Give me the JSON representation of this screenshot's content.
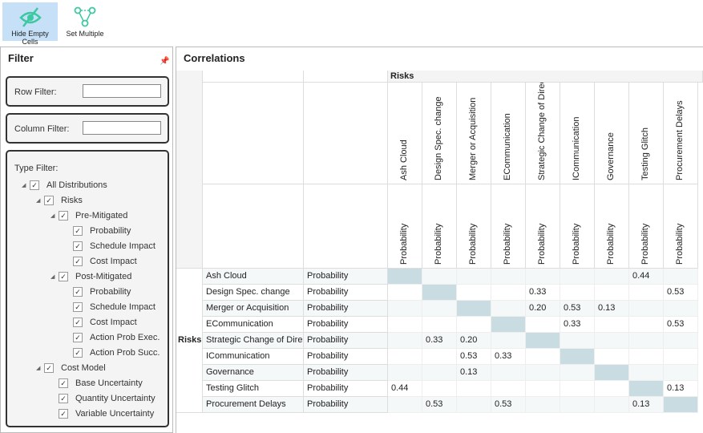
{
  "toolbar": {
    "hide_empty": "Hide Empty Cells",
    "set_multiple": "Set Multiple",
    "accent": "#3cc8a0"
  },
  "filter": {
    "title": "Filter",
    "row_filter": "Row Filter:",
    "row_value": "",
    "column_filter": "Column Filter:",
    "column_value": "",
    "type_filter": "Type Filter:",
    "tree": [
      {
        "label": "All Distributions",
        "level": 0,
        "expandable": true,
        "checked": true
      },
      {
        "label": "Risks",
        "level": 1,
        "expandable": true,
        "checked": true
      },
      {
        "label": "Pre-Mitigated",
        "level": 2,
        "expandable": true,
        "checked": true
      },
      {
        "label": "Probability",
        "level": 3,
        "expandable": false,
        "checked": true
      },
      {
        "label": "Schedule Impact",
        "level": 3,
        "expandable": false,
        "checked": true
      },
      {
        "label": "Cost Impact",
        "level": 3,
        "expandable": false,
        "checked": true
      },
      {
        "label": "Post-Mitigated",
        "level": 2,
        "expandable": true,
        "checked": true
      },
      {
        "label": "Probability",
        "level": 3,
        "expandable": false,
        "checked": true
      },
      {
        "label": "Schedule Impact",
        "level": 3,
        "expandable": false,
        "checked": true
      },
      {
        "label": "Cost Impact",
        "level": 3,
        "expandable": false,
        "checked": true
      },
      {
        "label": "Action Prob Exec.",
        "level": 3,
        "expandable": false,
        "checked": true
      },
      {
        "label": "Action Prob Succ.",
        "level": 3,
        "expandable": false,
        "checked": true
      },
      {
        "label": "Cost Model",
        "level": 1,
        "expandable": true,
        "checked": true
      },
      {
        "label": "Base Uncertainty",
        "level": 2,
        "expandable": false,
        "checked": true
      },
      {
        "label": "Quantity Uncertainty",
        "level": 2,
        "expandable": false,
        "checked": true
      },
      {
        "label": "Variable Uncertainty",
        "level": 2,
        "expandable": false,
        "checked": true
      }
    ]
  },
  "correlations": {
    "title": "Correlations",
    "group": "Risks",
    "type": "Probability",
    "names": [
      "Ash Cloud",
      "Design Spec. change",
      "Merger or Acquisition",
      "ECommunication",
      "Strategic Change of Direct",
      "ICommunication",
      "Governance",
      "Testing Glitch",
      "Procurement Delays"
    ],
    "matrix": [
      [
        "",
        "",
        "",
        "",
        "",
        "",
        "",
        "0.44",
        ""
      ],
      [
        "",
        "",
        "",
        "",
        "0.33",
        "",
        "",
        "",
        "0.53"
      ],
      [
        "",
        "",
        "",
        "",
        "0.20",
        "0.53",
        "0.13",
        "",
        ""
      ],
      [
        "",
        "",
        "",
        "",
        "",
        "0.33",
        "",
        "",
        "0.53"
      ],
      [
        "",
        "0.33",
        "0.20",
        "",
        "",
        "",
        "",
        "",
        ""
      ],
      [
        "",
        "",
        "0.53",
        "0.33",
        "",
        "",
        "",
        "",
        ""
      ],
      [
        "",
        "",
        "0.13",
        "",
        "",
        "",
        "",
        "",
        ""
      ],
      [
        "0.44",
        "",
        "",
        "",
        "",
        "",
        "",
        "",
        "0.13"
      ],
      [
        "",
        "0.53",
        "",
        "0.53",
        "",
        "",
        "",
        "0.13",
        ""
      ]
    ],
    "diagonal_color": "#c8dce2"
  }
}
